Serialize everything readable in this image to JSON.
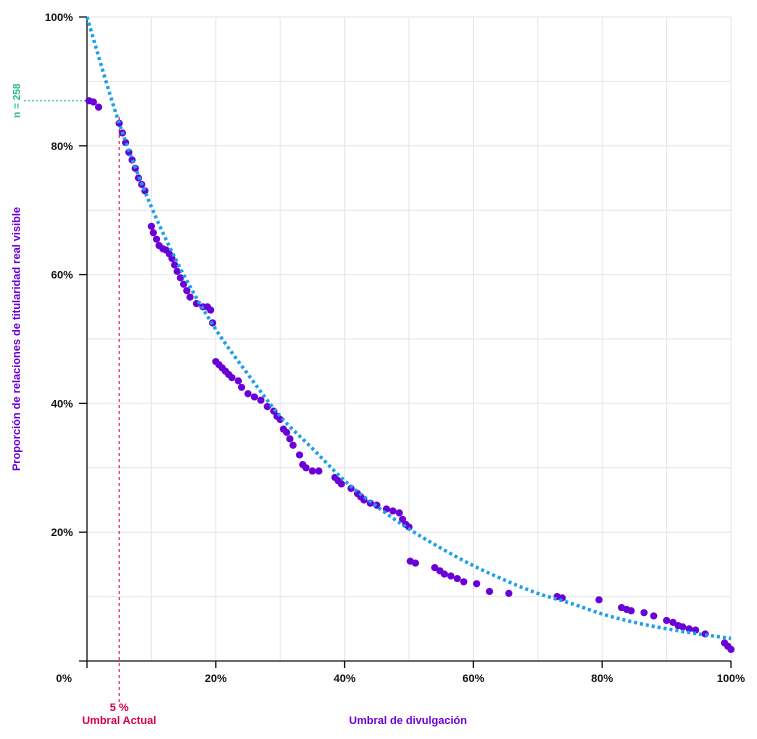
{
  "chart_data": {
    "type": "scatter",
    "xlabel": "Umbral de divulgación",
    "ylabel": "Proporción de relaciones de titularidad real visible",
    "xlim": [
      0,
      100
    ],
    "ylim": [
      0,
      100
    ],
    "grid": true,
    "x_ticks": [
      "0%",
      "20%",
      "40%",
      "60%",
      "80%",
      "100%"
    ],
    "y_ticks": [
      "20%",
      "40%",
      "60%",
      "80%",
      "100%"
    ],
    "threshold": {
      "x": 5,
      "value_label": "5 %",
      "label": "Umbral Actual",
      "color": "#d4004c"
    },
    "n_annotation": {
      "label": "n = 258",
      "y": 87,
      "color": "#1fbf7a"
    },
    "colors": {
      "points": "#6a00d8",
      "fit": "#1a9fe8",
      "grid": "#e6e6e6"
    },
    "series": [
      {
        "kind": "points",
        "points": [
          [
            0.3,
            87
          ],
          [
            1,
            86.8
          ],
          [
            1.8,
            86
          ],
          [
            5,
            83.5
          ],
          [
            5.5,
            82
          ],
          [
            6,
            80.5
          ],
          [
            6.5,
            79
          ],
          [
            7,
            77.8
          ],
          [
            7.5,
            76.5
          ],
          [
            8,
            75
          ],
          [
            8.5,
            74
          ],
          [
            9,
            73
          ],
          [
            10,
            67.5
          ],
          [
            10.3,
            66.5
          ],
          [
            10.8,
            65.5
          ],
          [
            11.2,
            64.5
          ],
          [
            11.8,
            64
          ],
          [
            12.3,
            63.8
          ],
          [
            12.8,
            63.2
          ],
          [
            13.2,
            62.5
          ],
          [
            13.6,
            61.5
          ],
          [
            14,
            60.5
          ],
          [
            14.5,
            59.5
          ],
          [
            15,
            58.5
          ],
          [
            15.5,
            57.5
          ],
          [
            16,
            56.5
          ],
          [
            17,
            55.5
          ],
          [
            18,
            55
          ],
          [
            18.7,
            55
          ],
          [
            19.2,
            54.5
          ],
          [
            19.5,
            52.5
          ],
          [
            20,
            46.5
          ],
          [
            20.5,
            46
          ],
          [
            21,
            45.5
          ],
          [
            21.5,
            45
          ],
          [
            22,
            44.5
          ],
          [
            22.5,
            44
          ],
          [
            23.5,
            43.5
          ],
          [
            24,
            42.5
          ],
          [
            25,
            41.5
          ],
          [
            26,
            41
          ],
          [
            27,
            40.5
          ],
          [
            28,
            39.5
          ],
          [
            29,
            38.8
          ],
          [
            29.5,
            38
          ],
          [
            30,
            37.5
          ],
          [
            30.5,
            36
          ],
          [
            31,
            35.5
          ],
          [
            31.5,
            34.5
          ],
          [
            32,
            33.5
          ],
          [
            33,
            32
          ],
          [
            33.5,
            30.5
          ],
          [
            34,
            30
          ],
          [
            35,
            29.5
          ],
          [
            36,
            29.5
          ],
          [
            38.5,
            28.5
          ],
          [
            39,
            28
          ],
          [
            39.5,
            27.5
          ],
          [
            41,
            26.8
          ],
          [
            42,
            26
          ],
          [
            42.5,
            25.5
          ],
          [
            43,
            25
          ],
          [
            44,
            24.5
          ],
          [
            45,
            24.2
          ],
          [
            46.5,
            23.6
          ],
          [
            47.5,
            23.3
          ],
          [
            48.5,
            23
          ],
          [
            49,
            22
          ],
          [
            49.5,
            21.2
          ],
          [
            50,
            20.8
          ],
          [
            50.2,
            15.5
          ],
          [
            51,
            15.2
          ],
          [
            54,
            14.5
          ],
          [
            54.8,
            14
          ],
          [
            55.5,
            13.5
          ],
          [
            56.5,
            13.2
          ],
          [
            57.5,
            12.8
          ],
          [
            58.5,
            12.3
          ],
          [
            60.5,
            12
          ],
          [
            62.5,
            10.8
          ],
          [
            65.5,
            10.5
          ],
          [
            73,
            10
          ],
          [
            73.8,
            9.8
          ],
          [
            79.5,
            9.5
          ],
          [
            83,
            8.3
          ],
          [
            83.8,
            8
          ],
          [
            84.5,
            7.8
          ],
          [
            86.5,
            7.5
          ],
          [
            88,
            7
          ],
          [
            90,
            6.3
          ],
          [
            91,
            6
          ],
          [
            91.8,
            5.5
          ],
          [
            92.5,
            5.3
          ],
          [
            93.5,
            5
          ],
          [
            94.5,
            4.8
          ],
          [
            96,
            4.2
          ],
          [
            99,
            2.8
          ],
          [
            99.5,
            2.3
          ],
          [
            100,
            1.8
          ]
        ]
      },
      {
        "kind": "fit",
        "points": [
          [
            0,
            100
          ],
          [
            5,
            83.5
          ],
          [
            10,
            70.5
          ],
          [
            15,
            60
          ],
          [
            20,
            51.5
          ],
          [
            25,
            44.5
          ],
          [
            30,
            38
          ],
          [
            35,
            33
          ],
          [
            40,
            28
          ],
          [
            45,
            24
          ],
          [
            50,
            20.5
          ],
          [
            55,
            17.5
          ],
          [
            60,
            14.8
          ],
          [
            65,
            12.5
          ],
          [
            70,
            10.5
          ],
          [
            75,
            9
          ],
          [
            80,
            7.3
          ],
          [
            85,
            6
          ],
          [
            90,
            5
          ],
          [
            95,
            4.2
          ],
          [
            100,
            3.5
          ]
        ]
      }
    ]
  }
}
